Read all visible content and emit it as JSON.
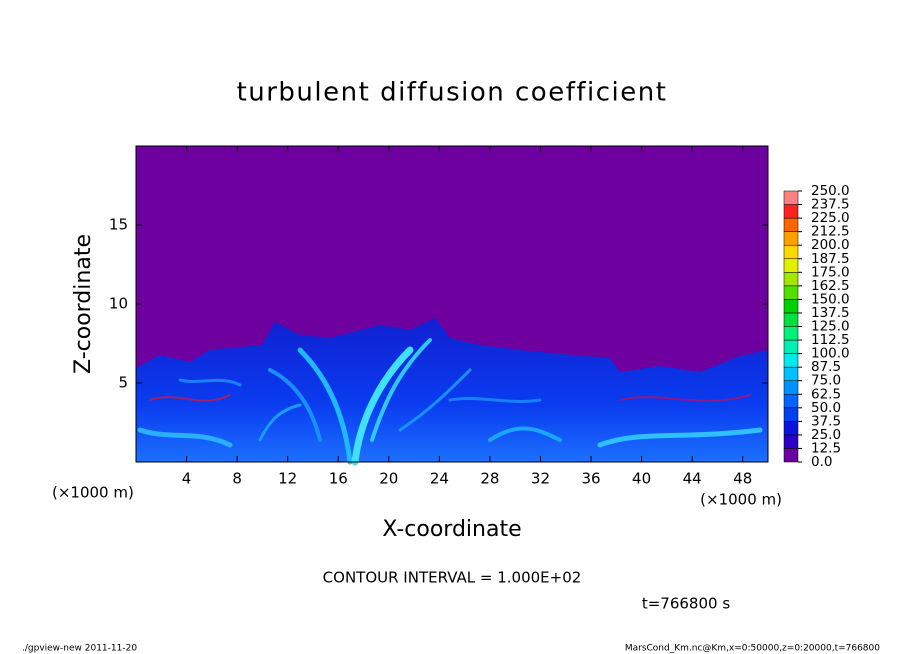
{
  "chart_data": {
    "type": "contour",
    "title": "turbulent diffusion coefficient",
    "xlabel": "X-coordinate",
    "ylabel": "Z-coordinate",
    "xunit": "(×1000 m)",
    "yunit": "(×1000 m)",
    "xlim": [
      0,
      50
    ],
    "xticks": [
      4,
      8,
      12,
      16,
      20,
      24,
      28,
      32,
      36,
      40,
      44,
      48
    ],
    "ylim": [
      0,
      20
    ],
    "yticks": [
      5,
      10,
      15
    ],
    "colorbar": {
      "levels": [
        {
          "value": 0,
          "label": "0.0"
        },
        {
          "value": 12.5,
          "label": "12.5"
        },
        {
          "value": 25,
          "label": "25.0"
        },
        {
          "value": 37.5,
          "label": "37.5"
        },
        {
          "value": 50,
          "label": "50.0"
        },
        {
          "value": 62.5,
          "label": "62.5"
        },
        {
          "value": 75,
          "label": "75.0"
        },
        {
          "value": 87.5,
          "label": "87.5"
        },
        {
          "value": 100,
          "label": "100.0"
        },
        {
          "value": 112.5,
          "label": "112.5"
        },
        {
          "value": 125,
          "label": "125.0"
        },
        {
          "value": 137.5,
          "label": "137.5"
        },
        {
          "value": 150,
          "label": "150.0"
        },
        {
          "value": 162.5,
          "label": "162.5"
        },
        {
          "value": 175,
          "label": "175.0"
        },
        {
          "value": 187.5,
          "label": "187.5"
        },
        {
          "value": 200,
          "label": "200.0"
        },
        {
          "value": 212.5,
          "label": "212.5"
        },
        {
          "value": 225,
          "label": "225.0"
        },
        {
          "value": 237.5,
          "label": "237.5"
        },
        {
          "value": 250,
          "label": "250.0"
        }
      ],
      "colors": [
        "#6e00a0",
        "#2c00c4",
        "#0a14dc",
        "#0040f0",
        "#0064ff",
        "#0090ff",
        "#00c0ff",
        "#00e8f0",
        "#00f0b4",
        "#00f078",
        "#00e040",
        "#00d000",
        "#50e000",
        "#a0e800",
        "#e0f000",
        "#ffd800",
        "#ffa000",
        "#ff6400",
        "#ff2020",
        "#ff8080"
      ]
    },
    "contour_interval": "CONTOUR INTERVAL = 1.000E+02",
    "time_label": "t=766800 s",
    "footer_left": "./gpview-new   2011-11-20",
    "footer_right": "MarsCond_Km.nc@Km,x=0:50000,z=0:20000,t=766800"
  }
}
